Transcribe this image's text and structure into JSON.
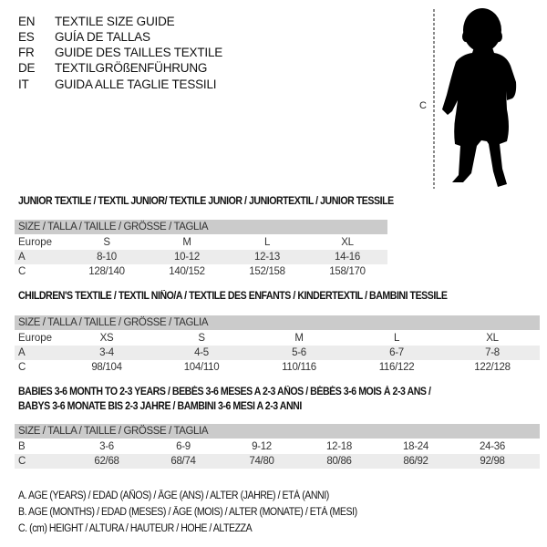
{
  "titles": [
    {
      "code": "EN",
      "text": "TEXTILE SIZE GUIDE"
    },
    {
      "code": "ES",
      "text": "GUÍA DE TALLAS"
    },
    {
      "code": "FR",
      "text": "GUIDE DES TAILLES TEXTILE"
    },
    {
      "code": "DE",
      "text": "TEXTILGRÖßENFÜHRUNG"
    },
    {
      "code": "IT",
      "text": "GUIDA ALLE TAGLIE TESSILI"
    }
  ],
  "figure": {
    "measure_label": "C",
    "icon": "baby-silhouette-icon"
  },
  "size_header": "SIZE / TALLA / TAILLE / GRÖSSE / TAGLIA",
  "sections": [
    {
      "title": "JUNIOR TEXTILE / TEXTIL JUNIOR/ TEXTILE JUNIOR / JUNIORTEXTIL / JUNIOR TESSILE",
      "rows": [
        {
          "label": "Europe",
          "values": [
            "S",
            "M",
            "L",
            "XL"
          ]
        },
        {
          "label": "A",
          "values": [
            "8-10",
            "10-12",
            "12-13",
            "14-16"
          ]
        },
        {
          "label": "C",
          "values": [
            "128/140",
            "140/152",
            "152/158",
            "158/170"
          ]
        }
      ]
    },
    {
      "title": "CHILDREN'S TEXTILE / TEXTIL NIÑO/A / TEXTILE DES ENFANTS / KINDERTEXTIL / BAMBINI TESSILE",
      "rows": [
        {
          "label": "Europe",
          "values": [
            "XS",
            "S",
            "M",
            "L",
            "XL"
          ]
        },
        {
          "label": "A",
          "values": [
            "3-4",
            "4-5",
            "5-6",
            "6-7",
            "7-8"
          ]
        },
        {
          "label": "C",
          "values": [
            "98/104",
            "104/110",
            "110/116",
            "116/122",
            "122/128"
          ]
        }
      ]
    },
    {
      "title": "BABIES 3-6 MONTH TO 2-3 YEARS / BEBÉS 3-6 MESES A 2-3 AÑOS / BÉBÉS 3-6 MOIS À 2-3 ANS /",
      "title2": "BABYS 3-6 MONATE BIS 2-3 JAHRE / BAMBINI 3-6 MESI A 2-3 ANNI",
      "rows": [
        {
          "label": "B",
          "values": [
            "3-6",
            "6-9",
            "9-12",
            "12-18",
            "18-24",
            "24-36"
          ]
        },
        {
          "label": "C",
          "values": [
            "62/68",
            "68/74",
            "74/80",
            "80/86",
            "86/92",
            "92/98"
          ]
        }
      ]
    }
  ],
  "legend": [
    "A. AGE (YEARS) / EDAD (AÑOS) / ÂGE (ANS) / ALTER (JAHRE) / ETÀ (ANNI)",
    "B. AGE (MONTHS) / EDAD (MESES) / ÂGE (MOIS) / ALTER (MONATE) / ETÀ (MESI)",
    "C. (cm) HEIGHT / ALTURA / HAUTEUR / HÖHE / ALTEZZA"
  ],
  "colors": {
    "header_bg": "#cbcbcb",
    "shade_bg": "#ececec"
  }
}
